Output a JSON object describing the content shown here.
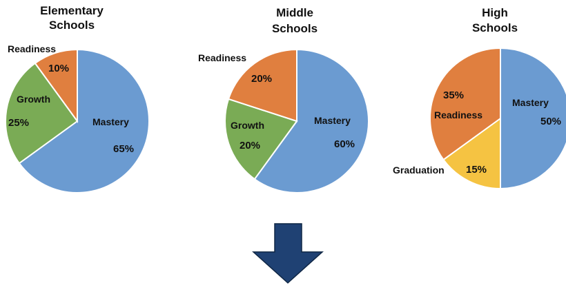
{
  "colors": {
    "mastery": "#6b9bd1",
    "growth": "#7aab55",
    "readiness": "#e07f3f",
    "graduation": "#f5c342",
    "arrow_fill": "#1f4173",
    "arrow_stroke": "#0f2644"
  },
  "chart_data": [
    {
      "type": "pie",
      "title_lines": [
        "Elementary",
        "Schools"
      ],
      "slices": [
        {
          "name": "Mastery",
          "value": 65,
          "label": "65%",
          "color": "#6b9bd1"
        },
        {
          "name": "Growth",
          "value": 25,
          "label": "25%",
          "color": "#7aab55"
        },
        {
          "name": "Readiness",
          "value": 10,
          "label": "10%",
          "color": "#e07f3f"
        }
      ]
    },
    {
      "type": "pie",
      "title_lines": [
        "Middle",
        "Schools"
      ],
      "slices": [
        {
          "name": "Mastery",
          "value": 60,
          "label": "60%",
          "color": "#6b9bd1"
        },
        {
          "name": "Growth",
          "value": 20,
          "label": "20%",
          "color": "#7aab55"
        },
        {
          "name": "Readiness",
          "value": 20,
          "label": "20%",
          "color": "#e07f3f"
        }
      ]
    },
    {
      "type": "pie",
      "title_lines": [
        "High",
        "Schools"
      ],
      "slices": [
        {
          "name": "Mastery",
          "value": 50,
          "label": "50%",
          "color": "#6b9bd1"
        },
        {
          "name": "Graduation",
          "value": 15,
          "label": "15%",
          "color": "#f5c342"
        },
        {
          "name": "Readiness",
          "value": 35,
          "label": "35%",
          "color": "#e07f3f"
        }
      ]
    }
  ]
}
